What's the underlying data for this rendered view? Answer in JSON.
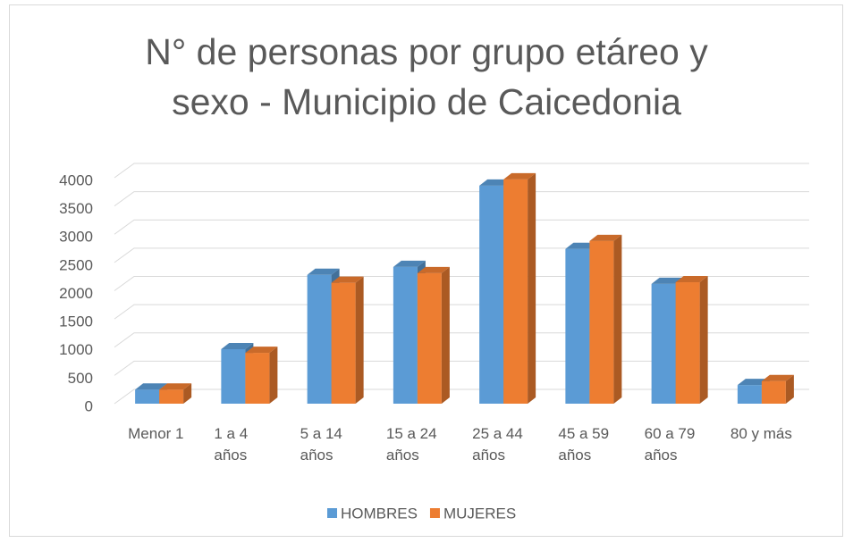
{
  "chart_data": {
    "type": "bar3d",
    "title": "N° de personas por grupo etáreo y sexo - Municipio de Caicedonia",
    "categories": [
      "Menor 1",
      "1 a 4 años",
      "5 a 14 años",
      "15 a 24 años",
      "25 a 44 años",
      "45 a 59 años",
      "60 a 79 años",
      "80 y más"
    ],
    "series": [
      {
        "name": "HOMBRES",
        "color": "#5b9bd5",
        "values": [
          250,
          965,
          2280,
          2420,
          3860,
          2740,
          2120,
          330
        ]
      },
      {
        "name": "MUJERES",
        "color": "#ed7d31",
        "values": [
          250,
          900,
          2140,
          2310,
          3970,
          2880,
          2150,
          400
        ]
      }
    ],
    "ylim": [
      0,
      4000
    ],
    "yticks": [
      0,
      500,
      1000,
      1500,
      2000,
      2500,
      3000,
      3500,
      4000
    ],
    "grid": true,
    "legend": "bottom"
  }
}
